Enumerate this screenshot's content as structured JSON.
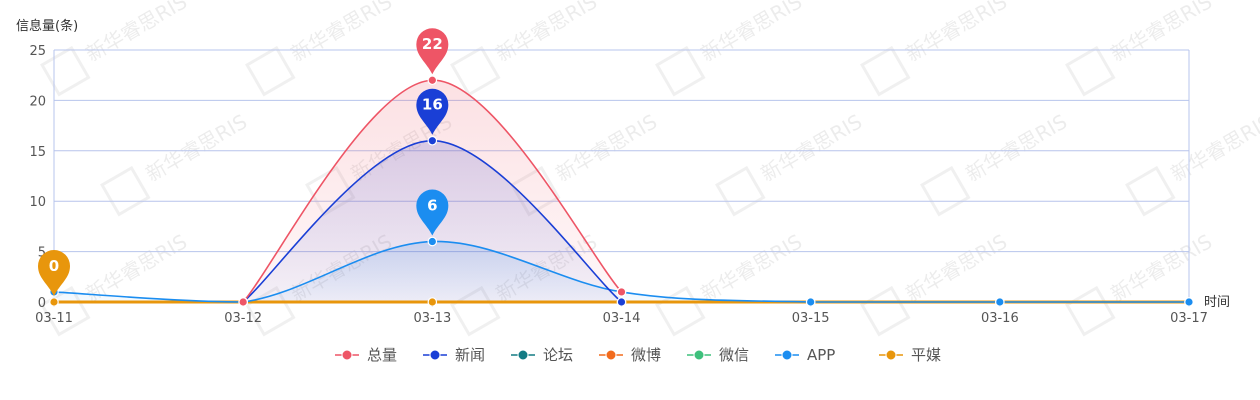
{
  "chart_data": {
    "type": "line",
    "ylabel": "信息量(条)",
    "xlabel": "时间",
    "categories": [
      "03-11",
      "03-12",
      "03-13",
      "03-14",
      "03-15",
      "03-16",
      "03-17"
    ],
    "ylim": [
      0,
      25
    ],
    "yticks": [
      0,
      5,
      10,
      15,
      20,
      25
    ],
    "grid": true,
    "legend_position": "bottom-center",
    "series": [
      {
        "name": "总量",
        "color": "#ee5566",
        "values": [
          null,
          0,
          22,
          1,
          null,
          null,
          null
        ],
        "area": true,
        "marker_label": 22
      },
      {
        "name": "新闻",
        "color": "#1a3fd6",
        "values": [
          null,
          0,
          16,
          0,
          null,
          null,
          null
        ],
        "area": true,
        "marker_label": 16
      },
      {
        "name": "论坛",
        "color": "#137b84",
        "values": [
          0,
          0,
          0,
          0,
          0,
          0,
          0
        ]
      },
      {
        "name": "微博",
        "color": "#f26b1d",
        "values": [
          0,
          0,
          0,
          0,
          0,
          0,
          0
        ]
      },
      {
        "name": "微信",
        "color": "#3ec07c",
        "values": [
          0,
          0,
          0,
          0,
          0,
          0,
          0
        ]
      },
      {
        "name": "APP",
        "color": "#1b8df0",
        "values": [
          1,
          0,
          6,
          1,
          0,
          0,
          0
        ],
        "area": true,
        "marker_label": 6
      },
      {
        "name": "平媒",
        "color": "#e8960c",
        "values": [
          0,
          0,
          0,
          0,
          0,
          0,
          0
        ],
        "marker_label": 0,
        "marker_index": 0
      }
    ],
    "watermark": "新华睿思RIS"
  }
}
